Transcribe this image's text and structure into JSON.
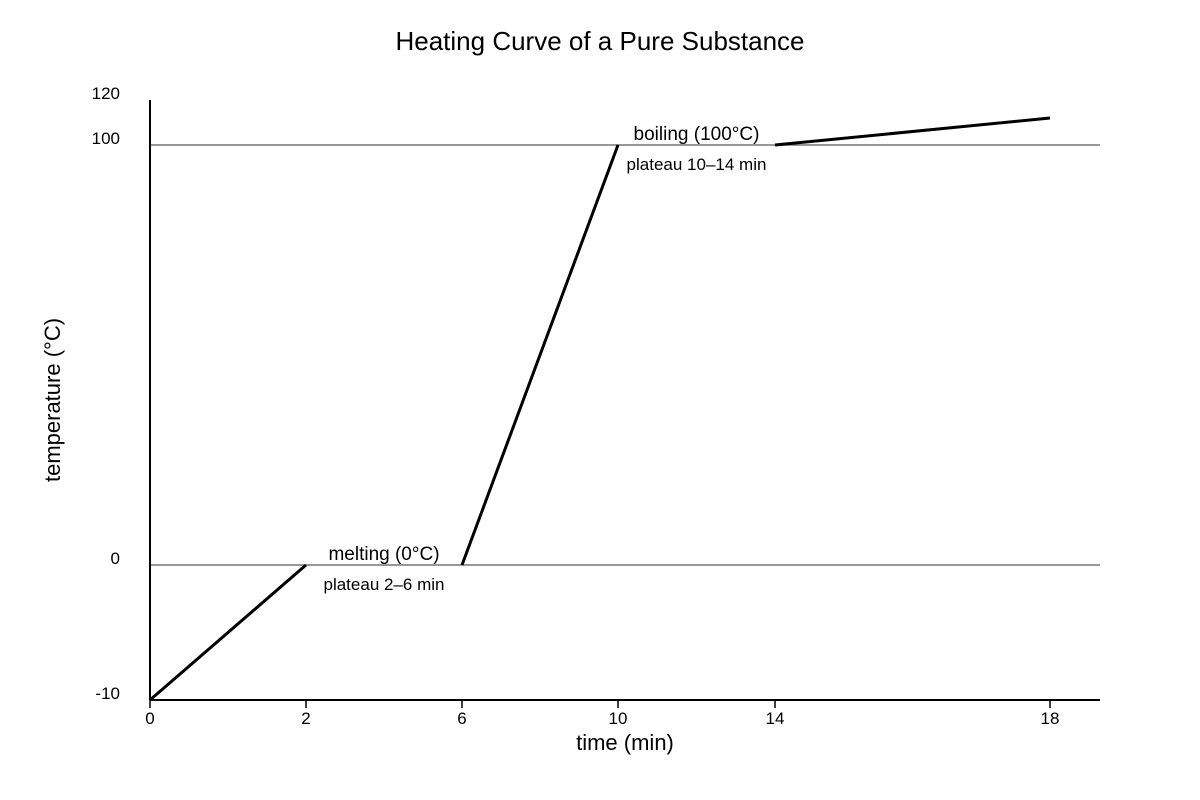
{
  "chart_data": {
    "type": "line",
    "title": "Heating Curve of a Pure Substance",
    "xlabel": "time (min)",
    "ylabel": "temperature (°C)",
    "xlim": [
      0,
      18
    ],
    "ylim": [
      -10,
      120
    ],
    "x_ticks": [
      0,
      2,
      6,
      10,
      14,
      18
    ],
    "y_ticks": [
      -10,
      0,
      100,
      120
    ],
    "reference_lines": [
      0,
      100
    ],
    "segments": [
      {
        "x": [
          0,
          2
        ],
        "y": [
          -10,
          0
        ]
      },
      {
        "x": [
          6,
          10
        ],
        "y": [
          0,
          100
        ]
      },
      {
        "x": [
          14,
          18
        ],
        "y": [
          100,
          112
        ]
      }
    ],
    "annotations": [
      {
        "text": "melting (0°C)",
        "sub": "plateau 2–6 min",
        "x": 4,
        "y": 0
      },
      {
        "text": "boiling (100°C)",
        "sub": "plateau 10–14 min",
        "x": 12,
        "y": 100
      }
    ],
    "grid": false,
    "legend": false
  }
}
